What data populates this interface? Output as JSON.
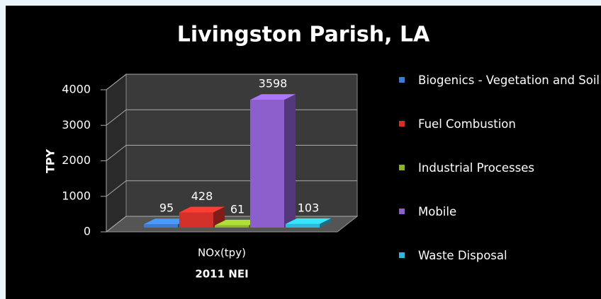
{
  "chart_data": {
    "type": "bar",
    "title": "Livingston Parish, LA",
    "categories": [
      "NOx(tpy)"
    ],
    "x_label": "2011 NEI",
    "y_label": "TPY",
    "series": [
      {
        "name": "Biogenics - Vegetation and Soil",
        "color": "#3b7bd0",
        "values": [
          95
        ]
      },
      {
        "name": "Fuel Combustion",
        "color": "#d4302a",
        "values": [
          428
        ]
      },
      {
        "name": "Industrial Processes",
        "color": "#8db32c",
        "values": [
          61
        ]
      },
      {
        "name": "Mobile",
        "color": "#8b5fcc",
        "values": [
          3598
        ]
      },
      {
        "name": "Waste Disposal",
        "color": "#2cb9dc",
        "values": [
          103
        ]
      }
    ],
    "ylim": [
      0,
      4000
    ],
    "yticks": [
      0,
      1000,
      2000,
      3000,
      4000
    ],
    "grid": true,
    "legend": "right"
  }
}
